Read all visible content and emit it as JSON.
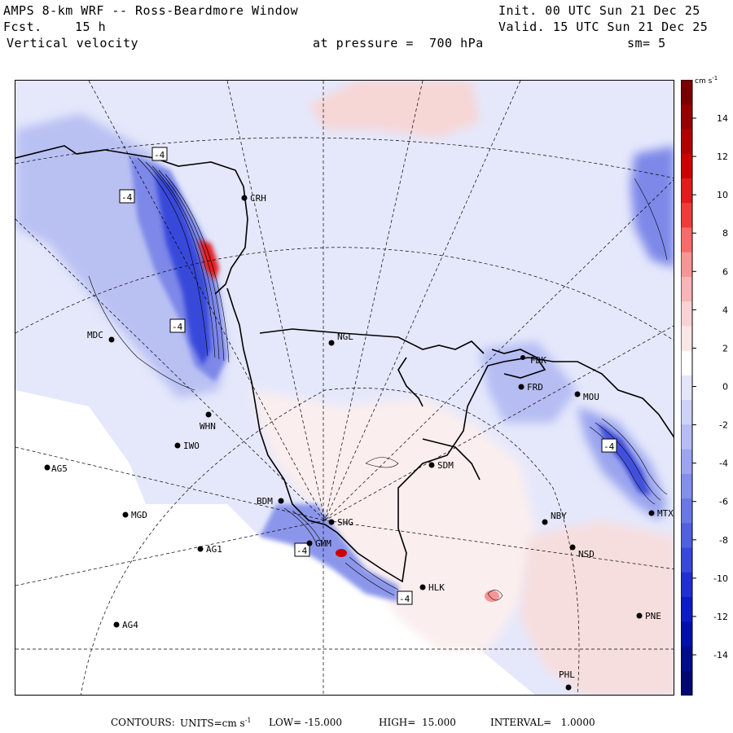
{
  "header": {
    "model": "AMPS 8-km WRF -- Ross-Beardmore Window",
    "fcst_label": "Fcst.",
    "fcst_value": "15 h",
    "variable": "Vertical velocity",
    "init": "Init. 00 UTC Sun 21 Dec 25",
    "valid": "Valid. 15 UTC Sun 21 Dec 25",
    "pressure": "at pressure =  700 hPa",
    "smoothing": "sm= 5"
  },
  "colorbar": {
    "units": "cm s",
    "units_exp": "-1",
    "ticks": [
      "14",
      "12",
      "10",
      "8",
      "6",
      "4",
      "2",
      "0",
      "-2",
      "-4",
      "-6",
      "-8",
      "-10",
      "-12",
      "-14"
    ],
    "colors": [
      "#7a0000",
      "#960000",
      "#b00000",
      "#cc0000",
      "#e31a1c",
      "#f03b3b",
      "#f76b6b",
      "#f59595",
      "#f7b5b5",
      "#f9d3d3",
      "#fbe6e6",
      "#ffffff",
      "#e3e6fb",
      "#cdd2f7",
      "#b5bdf3",
      "#9ca6ee",
      "#8390ea",
      "#6a78e4",
      "#5160df",
      "#3848da",
      "#2030d2",
      "#0b1cc6",
      "#0010a8",
      "#000c8a",
      "#000870"
    ]
  },
  "stations": [
    {
      "id": "CRH"
    },
    {
      "id": "MDC"
    },
    {
      "id": "NGL"
    },
    {
      "id": "FRD"
    },
    {
      "id": "FDK"
    },
    {
      "id": "MOU"
    },
    {
      "id": "WHN"
    },
    {
      "id": "IWO"
    },
    {
      "id": "AG5"
    },
    {
      "id": "SDM"
    },
    {
      "id": "MGD"
    },
    {
      "id": "BDM"
    },
    {
      "id": "SHG"
    },
    {
      "id": "GMM"
    },
    {
      "id": "AG1"
    },
    {
      "id": "NBY"
    },
    {
      "id": "MTX"
    },
    {
      "id": "NSD"
    },
    {
      "id": "HLK"
    },
    {
      "id": "AG4"
    },
    {
      "id": "PNE"
    },
    {
      "id": "PHL"
    }
  ],
  "contour_labels": [
    "-4",
    "-4",
    "-4",
    "-4",
    "-4",
    "-4"
  ],
  "footer": {
    "contours": "CONTOURS:",
    "units": "UNITS=cm s",
    "units_exp": "-1",
    "low": "LOW= -15.000",
    "high": "HIGH=  15.000",
    "interval": "INTERVAL=   1.0000"
  }
}
